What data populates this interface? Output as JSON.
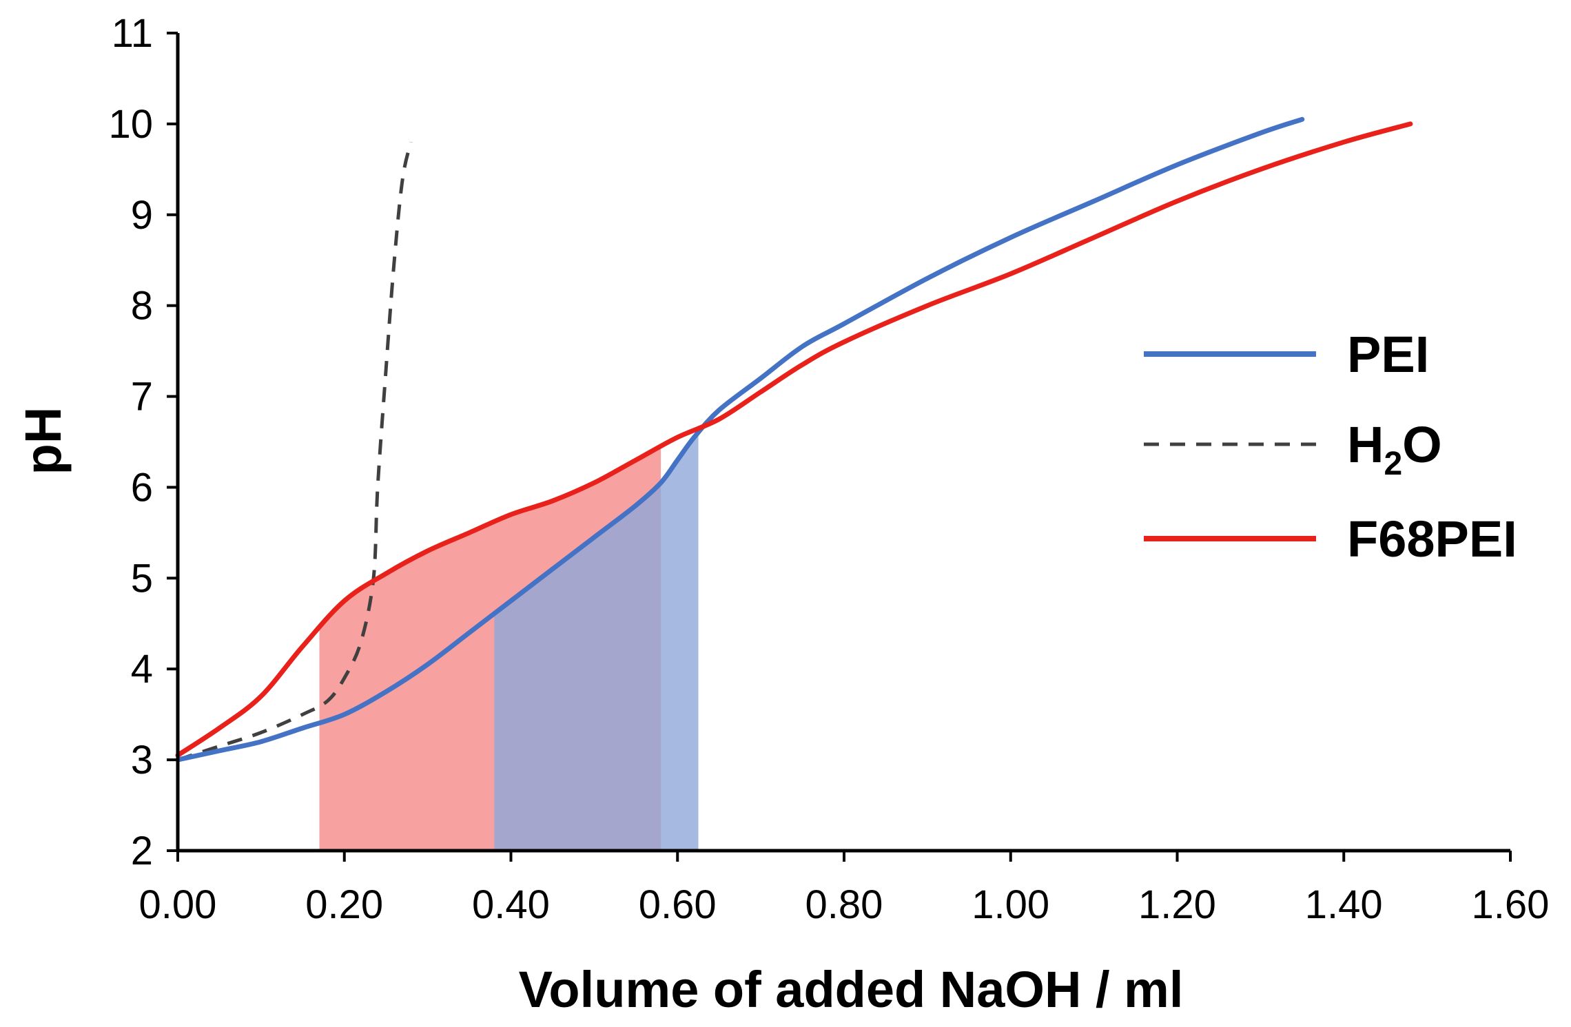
{
  "chart_data": {
    "type": "line",
    "title": "",
    "xlabel": "Volume of added NaOH / ml",
    "ylabel": "pH",
    "xlim": [
      0,
      1.6
    ],
    "ylim": [
      2,
      11
    ],
    "xticks": [
      "0.00",
      "0.20",
      "0.40",
      "0.60",
      "0.80",
      "1.00",
      "1.20",
      "1.40",
      "1.60"
    ],
    "yticks": [
      "2",
      "3",
      "4",
      "5",
      "6",
      "7",
      "8",
      "9",
      "10",
      "11"
    ],
    "legend_position": "right",
    "series": [
      {
        "name": "PEI",
        "label_main": "PEI",
        "label_sub": "",
        "label_tail": "",
        "color": "#4472c4",
        "style": "solid",
        "x": [
          0,
          0.05,
          0.1,
          0.15,
          0.2,
          0.25,
          0.3,
          0.35,
          0.4,
          0.45,
          0.5,
          0.55,
          0.58,
          0.6,
          0.62,
          0.65,
          0.7,
          0.75,
          0.8,
          0.9,
          1.0,
          1.1,
          1.2,
          1.3,
          1.35
        ],
        "y": [
          3.0,
          3.1,
          3.2,
          3.35,
          3.5,
          3.75,
          4.05,
          4.4,
          4.75,
          5.1,
          5.45,
          5.8,
          6.05,
          6.3,
          6.55,
          6.85,
          7.2,
          7.55,
          7.8,
          8.3,
          8.75,
          9.15,
          9.55,
          9.9,
          10.05
        ]
      },
      {
        "name": "H2O",
        "label_main": "H",
        "label_sub": "2",
        "label_tail": "O",
        "color": "#404040",
        "style": "dashed",
        "x": [
          0,
          0.05,
          0.1,
          0.15,
          0.18,
          0.2,
          0.22,
          0.235,
          0.24,
          0.25,
          0.26,
          0.27,
          0.28
        ],
        "y": [
          3.0,
          3.15,
          3.3,
          3.5,
          3.65,
          3.9,
          4.3,
          5.0,
          6.0,
          7.3,
          8.5,
          9.4,
          9.8
        ]
      },
      {
        "name": "F68PEI",
        "label_main": "F68PEI",
        "label_sub": "",
        "label_tail": "",
        "color": "#e8211b",
        "style": "solid",
        "x": [
          0,
          0.05,
          0.1,
          0.15,
          0.2,
          0.25,
          0.3,
          0.35,
          0.4,
          0.45,
          0.5,
          0.55,
          0.6,
          0.65,
          0.7,
          0.75,
          0.8,
          0.9,
          1.0,
          1.1,
          1.2,
          1.3,
          1.4,
          1.48
        ],
        "y": [
          3.05,
          3.35,
          3.7,
          4.25,
          4.75,
          5.05,
          5.3,
          5.5,
          5.7,
          5.85,
          6.05,
          6.3,
          6.55,
          6.75,
          7.05,
          7.35,
          7.6,
          8.0,
          8.35,
          8.75,
          9.15,
          9.5,
          9.8,
          10.0
        ]
      }
    ],
    "shaded_regions": [
      {
        "name": "F68PEI buffer region",
        "x_start": 0.17,
        "x_end": 0.58,
        "under": "F68PEI",
        "color": "#f7a1a1"
      },
      {
        "name": "PEI buffer region",
        "x_start": 0.38,
        "x_end": 0.625,
        "under": "PEI",
        "color": "#8fa7d9"
      }
    ]
  }
}
